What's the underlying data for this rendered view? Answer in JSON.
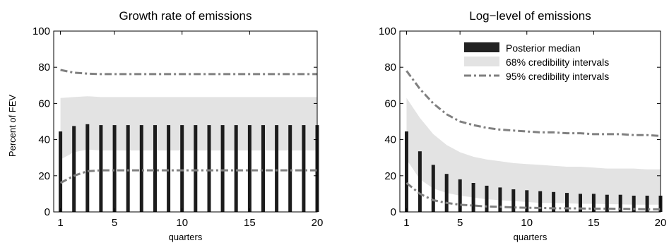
{
  "chart_data": [
    {
      "type": "bar",
      "title": "Growth rate of emissions",
      "xlabel": "quarters",
      "ylabel": "Percent of FEV",
      "xlim": [
        0.5,
        20
      ],
      "ylim": [
        0,
        100
      ],
      "xticks": [
        1,
        5,
        10,
        15,
        20
      ],
      "yticks": [
        0,
        20,
        40,
        60,
        80,
        100
      ],
      "x": [
        1,
        2,
        3,
        4,
        5,
        6,
        7,
        8,
        9,
        10,
        11,
        12,
        13,
        14,
        15,
        16,
        17,
        18,
        19,
        20
      ],
      "series": [
        {
          "name": "Posterior median",
          "values": [
            44.5,
            47.5,
            48.5,
            48,
            48,
            48,
            48,
            48,
            48,
            48,
            48,
            48,
            48,
            48,
            48,
            48,
            48,
            48,
            48,
            48
          ]
        },
        {
          "name": "68% credibility intervals",
          "lower": [
            29,
            33,
            34.5,
            34,
            34,
            34,
            34,
            34,
            34,
            34,
            34,
            34,
            34,
            34,
            34,
            34,
            34,
            34,
            34,
            34
          ],
          "upper": [
            63,
            63.5,
            64,
            63.5,
            63.5,
            63.5,
            63.5,
            63.5,
            63.5,
            63.5,
            63.5,
            63.5,
            63.5,
            63.5,
            63.5,
            63.5,
            63.5,
            63.5,
            63.5,
            63.5
          ]
        },
        {
          "name": "95% credibility intervals",
          "lower": [
            16,
            20,
            22.5,
            23,
            23,
            23,
            23,
            23,
            23,
            23,
            23,
            23,
            23,
            23,
            23,
            23,
            23,
            23,
            23,
            23
          ],
          "upper": [
            78.5,
            77,
            76.5,
            76.2,
            76.2,
            76.2,
            76.2,
            76.2,
            76.2,
            76.2,
            76.2,
            76.2,
            76.2,
            76.2,
            76.2,
            76.2,
            76.2,
            76.2,
            76.2,
            76.2
          ]
        }
      ]
    },
    {
      "type": "bar",
      "title": "Log−level of emissions",
      "xlabel": "quarters",
      "ylabel": "",
      "xlim": [
        0.5,
        20
      ],
      "ylim": [
        0,
        100
      ],
      "xticks": [
        1,
        5,
        10,
        15,
        20
      ],
      "yticks": [
        0,
        20,
        40,
        60,
        80,
        100
      ],
      "legend": "top-right",
      "x": [
        1,
        2,
        3,
        4,
        5,
        6,
        7,
        8,
        9,
        10,
        11,
        12,
        13,
        14,
        15,
        16,
        17,
        18,
        19,
        20
      ],
      "series": [
        {
          "name": "Posterior median",
          "values": [
            44.5,
            33.5,
            26,
            21,
            18,
            16,
            14.5,
            13.5,
            12.5,
            12,
            11.5,
            11,
            10.5,
            10,
            10,
            9.5,
            9.5,
            9,
            9,
            9
          ]
        },
        {
          "name": "68% credibility intervals",
          "lower": [
            29,
            18,
            13,
            10.5,
            9,
            8,
            7,
            6.5,
            6,
            5.5,
            5,
            5,
            4.8,
            4.5,
            4.5,
            4.3,
            4.2,
            4,
            4,
            4
          ],
          "upper": [
            63,
            52,
            43,
            37,
            33,
            30.5,
            29,
            28,
            27,
            26.5,
            26,
            25.5,
            25,
            25,
            24.5,
            24,
            24,
            24,
            23.5,
            23.5
          ]
        },
        {
          "name": "95% credibility intervals",
          "lower": [
            16,
            10,
            6.5,
            5,
            4,
            3.5,
            3,
            2.8,
            2.5,
            2.3,
            2.2,
            2,
            2,
            1.9,
            1.8,
            1.8,
            1.7,
            1.6,
            1.5,
            1.5
          ],
          "upper": [
            78,
            68,
            60,
            54,
            50,
            48,
            46.5,
            45.5,
            45,
            44.5,
            44,
            44,
            43.5,
            43.5,
            43,
            43,
            43,
            42.5,
            42.5,
            42
          ]
        }
      ]
    }
  ]
}
